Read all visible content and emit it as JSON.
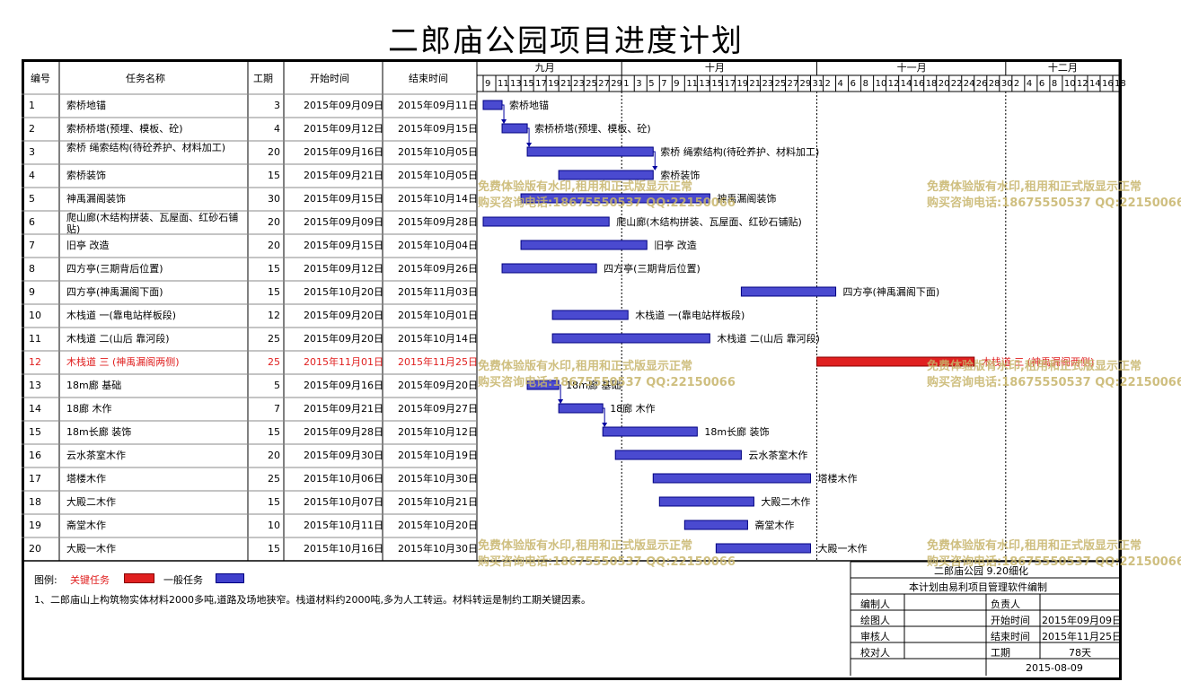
{
  "title": "二郎庙公园项目进度计划",
  "headers": {
    "id": "编号",
    "name": "任务名称",
    "dur": "工期",
    "start": "开始时间",
    "end": "结束时间"
  },
  "timeline": {
    "months": [
      {
        "label": "九月",
        "days": [
          "9",
          "11",
          "13",
          "15",
          "17",
          "19",
          "21",
          "23",
          "25",
          "27",
          "29"
        ]
      },
      {
        "label": "十月",
        "days": [
          "1",
          "3",
          "5",
          "7",
          "9",
          "11",
          "13",
          "15",
          "17",
          "19",
          "21",
          "23",
          "25",
          "27",
          "29",
          "31"
        ]
      },
      {
        "label": "十一月",
        "days": [
          "2",
          "4",
          "6",
          "8",
          "10",
          "12",
          "14",
          "16",
          "18",
          "20",
          "22",
          "24",
          "26",
          "28",
          "30"
        ]
      },
      {
        "label": "十二月",
        "days": [
          "2",
          "4",
          "6",
          "8",
          "10",
          "12",
          "14",
          "16",
          "18"
        ]
      }
    ]
  },
  "chart_data": {
    "type": "gantt",
    "title": "二郎庙公园项目进度计划",
    "x_axis_start": "2015-09-08",
    "x_axis_end": "2015-12-19",
    "tasks": [
      {
        "id": "1",
        "name": "索桥地锚",
        "dur": "3",
        "start": "2015年09月09日",
        "end": "2015年09月11日",
        "s": "2015-09-09",
        "e": "2015-09-11",
        "critical": false
      },
      {
        "id": "2",
        "name": "索桥桥塔(预埋、模板、砼)",
        "dur": "4",
        "start": "2015年09月12日",
        "end": "2015年09月15日",
        "s": "2015-09-12",
        "e": "2015-09-15",
        "critical": false
      },
      {
        "id": "3",
        "name": "索桥 绳索结构(待砼养护、材料加工)",
        "dur": "20",
        "start": "2015年09月16日",
        "end": "2015年10月05日",
        "s": "2015-09-16",
        "e": "2015-10-05",
        "critical": false
      },
      {
        "id": "4",
        "name": "索桥装饰",
        "dur": "15",
        "start": "2015年09月21日",
        "end": "2015年10月05日",
        "s": "2015-09-21",
        "e": "2015-10-05",
        "critical": false
      },
      {
        "id": "5",
        "name": "神禹漏阁装饰",
        "dur": "30",
        "start": "2015年09月15日",
        "end": "2015年10月14日",
        "s": "2015-09-15",
        "e": "2015-10-14",
        "critical": false
      },
      {
        "id": "6",
        "name": "爬山廊(木结构拼装、瓦屋面、红砂石铺贴)",
        "dur": "20",
        "start": "2015年09月09日",
        "end": "2015年09月28日",
        "s": "2015-09-09",
        "e": "2015-09-28",
        "critical": false
      },
      {
        "id": "7",
        "name": "旧亭 改造",
        "dur": "20",
        "start": "2015年09月15日",
        "end": "2015年10月04日",
        "s": "2015-09-15",
        "e": "2015-10-04",
        "critical": false
      },
      {
        "id": "8",
        "name": "四方亭(三期背后位置)",
        "dur": "15",
        "start": "2015年09月12日",
        "end": "2015年09月26日",
        "s": "2015-09-12",
        "e": "2015-09-26",
        "critical": false
      },
      {
        "id": "9",
        "name": "四方亭(神禹漏阁下面)",
        "dur": "15",
        "start": "2015年10月20日",
        "end": "2015年11月03日",
        "s": "2015-10-20",
        "e": "2015-11-03",
        "critical": false
      },
      {
        "id": "10",
        "name": "木栈道 一(靠电站样板段)",
        "dur": "12",
        "start": "2015年09月20日",
        "end": "2015年10月01日",
        "s": "2015-09-20",
        "e": "2015-10-01",
        "critical": false
      },
      {
        "id": "11",
        "name": "木栈道 二(山后 靠河段)",
        "dur": "25",
        "start": "2015年09月20日",
        "end": "2015年10月14日",
        "s": "2015-09-20",
        "e": "2015-10-14",
        "critical": false
      },
      {
        "id": "12",
        "name": "木栈道 三 (神禹漏阁两侧)",
        "dur": "25",
        "start": "2015年11月01日",
        "end": "2015年11月25日",
        "s": "2015-11-01",
        "e": "2015-11-25",
        "critical": true
      },
      {
        "id": "13",
        "name": "18m廊 基础",
        "dur": "5",
        "start": "2015年09月16日",
        "end": "2015年09月20日",
        "s": "2015-09-16",
        "e": "2015-09-20",
        "critical": false
      },
      {
        "id": "14",
        "name": "18廊 木作",
        "dur": "7",
        "start": "2015年09月21日",
        "end": "2015年09月27日",
        "s": "2015-09-21",
        "e": "2015-09-27",
        "critical": false
      },
      {
        "id": "15",
        "name": "18m长廊 装饰",
        "dur": "15",
        "start": "2015年09月28日",
        "end": "2015年10月12日",
        "s": "2015-09-28",
        "e": "2015-10-12",
        "critical": false
      },
      {
        "id": "16",
        "name": "云水茶室木作",
        "dur": "20",
        "start": "2015年09月30日",
        "end": "2015年10月19日",
        "s": "2015-09-30",
        "e": "2015-10-19",
        "critical": false
      },
      {
        "id": "17",
        "name": "塔楼木作",
        "dur": "25",
        "start": "2015年10月06日",
        "end": "2015年10月30日",
        "s": "2015-10-06",
        "e": "2015-10-30",
        "critical": false
      },
      {
        "id": "18",
        "name": "大殿二木作",
        "dur": "15",
        "start": "2015年10月07日",
        "end": "2015年10月21日",
        "s": "2015-10-07",
        "e": "2015-10-21",
        "critical": false
      },
      {
        "id": "19",
        "name": "斋堂木作",
        "dur": "10",
        "start": "2015年10月11日",
        "end": "2015年10月20日",
        "s": "2015-10-11",
        "e": "2015-10-20",
        "critical": false
      },
      {
        "id": "20",
        "name": "大殿一木作",
        "dur": "15",
        "start": "2015年10月16日",
        "end": "2015年10月30日",
        "s": "2015-10-16",
        "e": "2015-10-30",
        "critical": false
      }
    ],
    "links": [
      [
        "1",
        "2"
      ],
      [
        "2",
        "3"
      ],
      [
        "3",
        "4"
      ],
      [
        "13",
        "14"
      ],
      [
        "14",
        "15"
      ]
    ]
  },
  "legend": {
    "label": "图例:",
    "critical": "关键任务",
    "normal": "一般任务",
    "critical_color": "#e02020",
    "normal_color": "#4040cc"
  },
  "note": "1、二郎庙山上构筑物实体材料2000多吨,道路及场地狭窄。栈道材料约2000吨,多为人工转运。材料转运是制约工期关键因素。",
  "info": {
    "project": "二郎庙公园  9.20细化",
    "software": "本计划由易利项目管理软件编制",
    "rows": [
      [
        "编制人",
        "",
        "负责人",
        ""
      ],
      [
        "绘图人",
        "",
        "开始时间",
        "2015年09月09日"
      ],
      [
        "审核人",
        "",
        "结束时间",
        "2015年11月25日"
      ],
      [
        "校对人",
        "",
        "工期",
        "78天"
      ]
    ],
    "date": "2015-08-09"
  },
  "watermark": {
    "line1": "免费体验版有水印,租用和正式版显示正常",
    "line2": "购买咨询电话:18675550537 QQ:22150066"
  }
}
